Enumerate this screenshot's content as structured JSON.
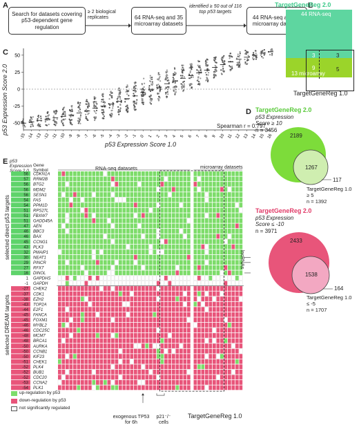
{
  "panelA": {
    "label": "A",
    "box1": "Search for datasets covering p53-dependent gene regulation",
    "arrow1_label": "≥ 2 biological replicates",
    "box2": "64 RNA-seq and 35 microarray datasets",
    "arrow2_label": "identified ≥ 50 out of 116 top p53 targets",
    "box3": "44 RNA-seq and 13 microarray datasets"
  },
  "panelB": {
    "label": "B",
    "title": "TargetGeneReg 2.0",
    "rnaseq": "44 RNA-seq",
    "microarray": "13 microarray",
    "n_top_right": "3",
    "n_inner_top": "3",
    "n_inner_bottom": "9",
    "n_right": "5",
    "bottom_title": "TargetGeneReg 1.0",
    "colors": {
      "rnaseq": "#5ed6a0",
      "microarray": "#9bd42a"
    }
  },
  "panelC": {
    "label": "C",
    "ylabel": "p53 Expression Score 2.0",
    "xlabel": "p53 Expression Score 1.0",
    "yticks": [
      "50",
      "25",
      "0",
      "-25",
      "-50"
    ],
    "xticks": [
      "-15",
      "-14",
      "-13",
      "-12",
      "-11",
      "-10",
      "-9",
      "-8",
      "-7",
      "-6",
      "-5",
      "-4",
      "-3",
      "-2",
      "-1",
      "0",
      "1",
      "2",
      "3",
      "4",
      "5",
      "6",
      "7",
      "8",
      "9",
      "10",
      "11",
      "12",
      "13",
      "14",
      "15",
      "16"
    ],
    "annotation": "Spearman r = 0.797"
  },
  "chart_data": {
    "type": "scatter",
    "xlabel": "p53 Expression Score 1.0",
    "ylabel": "p53 Expression Score 2.0",
    "xlim": [
      -15,
      16
    ],
    "ylim": [
      -60,
      60
    ],
    "x": [
      -15,
      -14,
      -13,
      -12,
      -11,
      -10,
      -9,
      -8,
      -7,
      -6,
      -5,
      -4,
      -3,
      -2,
      -1,
      0,
      1,
      2,
      3,
      4,
      5,
      6,
      7,
      8,
      9,
      10,
      11,
      12,
      13,
      14,
      15,
      16
    ],
    "median_y": [
      -50,
      -48,
      -46,
      -44,
      -42,
      -40,
      -38,
      -35,
      -32,
      -28,
      -25,
      -22,
      -18,
      -14,
      -10,
      -5,
      -1,
      3,
      8,
      12,
      16,
      20,
      24,
      28,
      32,
      36,
      40,
      44,
      47,
      50,
      53,
      55
    ],
    "annotation": "Spearman r = 0.797"
  },
  "panelD": {
    "label": "D",
    "upper": {
      "title": "TargetGeneReg 2.0",
      "subtitle1": "p53 Expression",
      "subtitle2": "Score ≥ 10",
      "n": "n = 3456",
      "only2": "2189",
      "both": "1267",
      "only1": "117",
      "v1_title": "TargetGeneReg 1.0",
      "v1_sub": "≥ 5",
      "v1_n": "n = 1392"
    },
    "lower": {
      "title": "TargetGeneReg 2.0",
      "subtitle1": "p53 Expression",
      "subtitle2": "Score ≤ -10",
      "n": "n = 3971",
      "only2": "2433",
      "both": "1538",
      "only1": "164",
      "v1_title": "TargetGeneReg 1.0",
      "v1_sub": "≤ -5",
      "v1_n": "n = 1707"
    }
  },
  "panelE": {
    "label": "E",
    "col_header1": "p53 Expression Score 2.0",
    "col_header2": "Gene Symbol",
    "rnaseq_label": "RNA-seq datasets",
    "microarray_label": "microarray datasets",
    "group1": "selected direct p53 targets",
    "group2": "selected DREAM targets",
    "lncrnas": "lncRNAs",
    "tgr1": "TargetGeneReg 1.0",
    "exo": "exogenous TP53 for 6h",
    "p21": "p21⁻/⁻ cells",
    "legend": [
      "up-regulation by p53",
      "down-regulation by p53",
      "not significantly regulated"
    ],
    "genes": [
      {
        "s": "56",
        "g": "CDKN1A"
      },
      {
        "s": "57",
        "g": "RRM2B"
      },
      {
        "s": "56",
        "g": "BTG2"
      },
      {
        "s": "56",
        "g": "MDM2"
      },
      {
        "s": "56",
        "g": "SESN1"
      },
      {
        "s": "54",
        "g": "FAS"
      },
      {
        "s": "54",
        "g": "PPM1D"
      },
      {
        "s": "51",
        "g": "RPS27L"
      },
      {
        "s": "51",
        "g": "FBXW7"
      },
      {
        "s": "51",
        "g": "GADD45A"
      },
      {
        "s": "47",
        "g": "AEN"
      },
      {
        "s": "46",
        "g": "BBC3"
      },
      {
        "s": "46",
        "g": "BAX"
      },
      {
        "s": "45",
        "g": "CCNG1"
      },
      {
        "s": "43",
        "g": "PLK3"
      },
      {
        "s": "32",
        "g": "PMAIP1"
      },
      {
        "s": "30",
        "g": "NEAT1"
      },
      {
        "s": "29",
        "g": "PINCR"
      },
      {
        "s": "27",
        "g": "RFX7"
      },
      {
        "s": "16",
        "g": "DINOL"
      },
      {
        "s": "1",
        "g": "GAPDHS"
      },
      {
        "s": "-1",
        "g": "GAPDH"
      },
      {
        "s": "-27",
        "g": "CHEK2"
      },
      {
        "s": "-37",
        "g": "CDK1"
      },
      {
        "s": "-38",
        "g": "EZH2"
      },
      {
        "s": "-43",
        "g": "TOP2A"
      },
      {
        "s": "-44",
        "g": "E2F1"
      },
      {
        "s": "-45",
        "g": "FANCA"
      },
      {
        "s": "-45",
        "g": "FOXM1"
      },
      {
        "s": "-46",
        "g": "MYBL2"
      },
      {
        "s": "-46",
        "g": "CDC25C"
      },
      {
        "s": "-48",
        "g": "MCM7"
      },
      {
        "s": "-48",
        "g": "BRCA1"
      },
      {
        "s": "-50",
        "g": "AURKA"
      },
      {
        "s": "-50",
        "g": "CCNB1"
      },
      {
        "s": "-50",
        "g": "KIF23"
      },
      {
        "s": "-51",
        "g": "CHEK1"
      },
      {
        "s": "-52",
        "g": "PLK4"
      },
      {
        "s": "-52",
        "g": "BUB1"
      },
      {
        "s": "-52",
        "g": "CDC20"
      },
      {
        "s": "-53",
        "g": "CCNA2"
      },
      {
        "s": "-54",
        "g": "PLK1"
      }
    ],
    "colors": {
      "up": "#7ddc6a",
      "down": "#e8557a",
      "none": "#ffffff"
    }
  }
}
